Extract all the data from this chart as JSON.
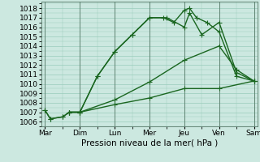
{
  "title": "",
  "xlabel": "Pression niveau de la mer( hPa )",
  "ylabel": "",
  "background_color": "#cce8e0",
  "grid_color": "#99ccbb",
  "line_color": "#1a6620",
  "x_labels": [
    "Mar",
    "Dim",
    "Lun",
    "Mer",
    "Jeu",
    "Ven",
    "Sam"
  ],
  "ylim": [
    1005.5,
    1018.7
  ],
  "yticks": [
    1006,
    1007,
    1008,
    1009,
    1010,
    1011,
    1012,
    1013,
    1014,
    1015,
    1016,
    1017,
    1018
  ],
  "lines": [
    {
      "x": [
        0,
        0.15,
        0.5,
        0.7,
        1.0,
        1.5,
        2.0,
        2.5,
        3.0,
        3.4,
        3.7,
        4.0,
        4.15,
        4.35,
        4.65,
        5.0,
        5.5,
        6.0
      ],
      "y": [
        1007.2,
        1006.3,
        1006.5,
        1007.0,
        1007.0,
        1010.8,
        1013.4,
        1015.2,
        1017.0,
        1017.0,
        1016.5,
        1017.8,
        1018.0,
        1017.0,
        1016.5,
        1015.5,
        1010.8,
        1010.3
      ]
    },
    {
      "x": [
        0,
        0.15,
        0.5,
        0.7,
        1.0,
        1.5,
        2.0,
        2.5,
        3.0,
        3.5,
        4.0,
        4.15,
        4.5,
        5.0,
        5.5,
        6.0
      ],
      "y": [
        1007.2,
        1006.3,
        1006.5,
        1007.0,
        1007.0,
        1010.8,
        1013.4,
        1015.2,
        1017.0,
        1017.0,
        1016.0,
        1017.5,
        1015.2,
        1016.5,
        1011.2,
        1010.3
      ]
    },
    {
      "x": [
        0.7,
        1.0,
        2.0,
        3.0,
        4.0,
        5.0,
        5.5,
        6.0
      ],
      "y": [
        1007.0,
        1007.0,
        1008.3,
        1010.2,
        1012.5,
        1014.0,
        1011.5,
        1010.3
      ]
    },
    {
      "x": [
        0.7,
        1.0,
        2.0,
        3.0,
        4.0,
        5.0,
        6.0
      ],
      "y": [
        1007.0,
        1007.0,
        1007.8,
        1008.5,
        1009.5,
        1009.5,
        1010.3
      ]
    }
  ],
  "marker": "+",
  "markersize": 4,
  "linewidth": 1.0,
  "fontsize_ticks": 6.5,
  "fontsize_xlabel": 7.5
}
